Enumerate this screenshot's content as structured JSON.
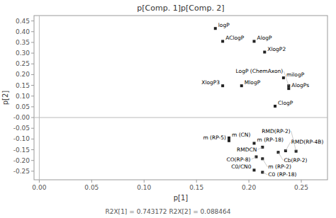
{
  "chart_data": {
    "type": "scatter",
    "title": "p[Comp. 1]p[Comp. 2]",
    "subtitle": "R2X[1] = 0.743172 R2X[2] = 0.088464",
    "xlabel": "p[1]",
    "ylabel": "p[2]",
    "x": [
      0.168,
      0.175,
      0.205,
      0.215,
      0.175,
      0.193,
      0.233,
      0.238,
      0.238,
      0.225,
      0.181,
      0.181,
      0.205,
      0.213,
      0.235,
      0.228,
      0.245,
      0.207,
      0.213,
      0.205,
      0.213
    ],
    "values": [
      0.415,
      0.355,
      0.355,
      0.305,
      0.148,
      0.148,
      0.185,
      0.148,
      0.135,
      0.053,
      -0.095,
      -0.108,
      -0.12,
      -0.138,
      -0.155,
      -0.162,
      -0.157,
      -0.183,
      -0.192,
      -0.245,
      -0.255
    ],
    "annotations": [
      "logP",
      "AClogP",
      "AlogP",
      "XlogP2",
      "XlogP3",
      "MlogP",
      "milogP",
      "LogP (ChemAxon)",
      "AlogPs",
      "ClogP",
      "m (CN)",
      "m (RP-5)",
      "m (RP-18)",
      "RMDCN",
      "RMD(RP-4B)",
      "Cb(RP-2)",
      "RMD(RP-2)",
      "CO(RP-8)",
      "m (RP-2)",
      "C0/CN0",
      "C0 (RP-18)"
    ],
    "color": "#222222",
    "marker": "square",
    "grid": false,
    "xlim": [
      -0.005,
      0.275
    ],
    "ylim": [
      -0.29,
      0.475
    ],
    "xticks": [
      {
        "value": 0,
        "label": "0.00"
      },
      0.05,
      {
        "value": 0.1,
        "label": "0.10"
      },
      0.15,
      {
        "value": 0.2,
        "label": "0.20"
      },
      0.25
    ],
    "yticks": [
      -0.25,
      {
        "value": -0.2,
        "label": "-0.20"
      },
      -0.15,
      {
        "value": -0.1,
        "label": "-0.10"
      },
      -0.05,
      {
        "value": 0,
        "label": "-0.00"
      },
      0.05,
      {
        "value": 0.1,
        "label": "0.10"
      },
      0.15,
      {
        "value": 0.2,
        "label": "0.20"
      },
      0.25,
      {
        "value": 0.3,
        "label": "0.30"
      },
      0.35,
      {
        "value": 0.4,
        "label": "0.40"
      },
      0.45
    ]
  }
}
